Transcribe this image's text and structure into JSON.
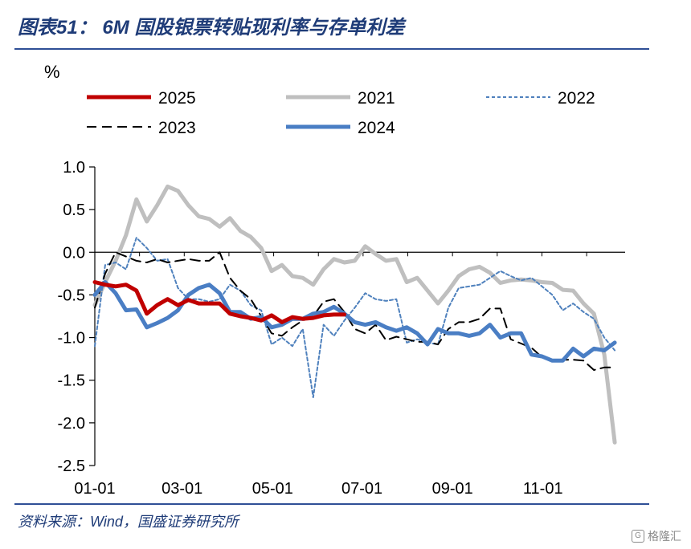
{
  "header": {
    "title": "图表51：  6M 国股银票转贴现利率与存单利差"
  },
  "footer": {
    "source": "资料来源：Wind，国盛证券研究所",
    "watermark": "格隆汇"
  },
  "chart_data": {
    "type": "line",
    "ylabel": "%",
    "ylim": [
      -2.5,
      1.0
    ],
    "yticks": [
      1.0,
      0.5,
      0.0,
      -0.5,
      -1.0,
      -1.5,
      -2.0,
      -2.5
    ],
    "ytick_labels": [
      "1.0",
      "0.5",
      "0.0",
      "-0.5",
      "-1.0",
      "-1.5",
      "-2.0",
      "-2.5"
    ],
    "xticks": [
      "01-01",
      "03-01",
      "05-01",
      "07-01",
      "09-01",
      "11-01"
    ],
    "x_unit": "week of year",
    "x_tick_weeks": [
      0,
      8.4,
      17.1,
      25.7,
      34.4,
      43.1
    ],
    "xlim": [
      0,
      51
    ],
    "legend_position": "top",
    "series": [
      {
        "name": "2025",
        "color": "#c00000",
        "style": "solid-thick",
        "x": [
          0,
          1,
          2,
          3,
          4,
          5,
          6,
          7,
          8,
          9,
          10,
          11,
          12,
          13,
          14,
          15,
          16,
          17,
          18,
          19,
          20,
          21,
          22,
          23,
          24
        ],
        "values": [
          -0.35,
          -0.38,
          -0.4,
          -0.38,
          -0.45,
          -0.72,
          -0.62,
          -0.55,
          -0.62,
          -0.56,
          -0.6,
          -0.6,
          -0.6,
          -0.72,
          -0.75,
          -0.77,
          -0.8,
          -0.74,
          -0.82,
          -0.76,
          -0.78,
          -0.77,
          -0.74,
          -0.73,
          -0.73
        ]
      },
      {
        "name": "2021",
        "color": "#bfbfbf",
        "style": "solid-thick",
        "x": [
          0,
          1,
          2,
          3,
          4,
          5,
          6,
          7,
          8,
          9,
          10,
          11,
          12,
          13,
          14,
          15,
          16,
          17,
          18,
          19,
          20,
          21,
          22,
          23,
          24,
          25,
          26,
          27,
          28,
          29,
          30,
          31,
          32,
          33,
          34,
          35,
          36,
          37,
          38,
          39,
          40,
          41,
          42,
          43,
          44,
          45,
          46,
          47,
          48,
          49,
          50
        ],
        "values": [
          -0.62,
          -0.35,
          -0.1,
          0.2,
          0.62,
          0.36,
          0.55,
          0.77,
          0.72,
          0.55,
          0.42,
          0.39,
          0.3,
          0.4,
          0.25,
          0.18,
          0.05,
          -0.22,
          -0.15,
          -0.28,
          -0.3,
          -0.38,
          -0.2,
          -0.08,
          -0.12,
          -0.1,
          0.07,
          -0.02,
          -0.1,
          -0.08,
          -0.35,
          -0.3,
          -0.45,
          -0.6,
          -0.45,
          -0.28,
          -0.2,
          -0.17,
          -0.24,
          -0.36,
          -0.33,
          -0.32,
          -0.33,
          -0.35,
          -0.36,
          -0.44,
          -0.45,
          -0.6,
          -0.72,
          -1.2,
          -2.23
        ]
      },
      {
        "name": "2022",
        "color": "#4f81bd",
        "style": "dotted",
        "x": [
          0,
          1,
          2,
          3,
          4,
          5,
          6,
          7,
          8,
          9,
          10,
          11,
          12,
          13,
          14,
          15,
          16,
          17,
          18,
          19,
          20,
          21,
          22,
          23,
          24,
          25,
          26,
          27,
          28,
          29,
          30,
          31,
          32,
          33,
          34,
          35,
          36,
          37,
          38,
          39,
          40,
          41,
          42,
          43,
          44,
          45,
          46,
          47,
          48,
          49,
          50
        ],
        "values": [
          -1.1,
          -0.15,
          -0.12,
          -0.2,
          0.17,
          0.05,
          -0.1,
          -0.08,
          -0.42,
          -0.55,
          -0.55,
          -0.58,
          -0.55,
          -0.38,
          -0.45,
          -0.62,
          -0.68,
          -1.08,
          -1.0,
          -1.1,
          -0.9,
          -1.7,
          -0.85,
          -0.98,
          -0.8,
          -0.65,
          -0.48,
          -0.55,
          -0.57,
          -0.55,
          -1.06,
          -1.02,
          -1.06,
          -1.08,
          -0.65,
          -0.42,
          -0.4,
          -0.38,
          -0.3,
          -0.22,
          -0.28,
          -0.33,
          -0.3,
          -0.4,
          -0.5,
          -0.68,
          -0.6,
          -0.7,
          -0.78,
          -1.0,
          -1.15
        ]
      },
      {
        "name": "2023",
        "color": "#000000",
        "style": "dashed",
        "x": [
          0,
          1,
          2,
          3,
          4,
          5,
          6,
          7,
          8,
          9,
          10,
          11,
          12,
          13,
          14,
          15,
          16,
          17,
          18,
          19,
          20,
          21,
          22,
          23,
          24,
          25,
          26,
          27,
          28,
          29,
          30,
          31,
          32,
          33,
          34,
          35,
          36,
          37,
          38,
          39,
          40,
          41,
          42,
          43,
          44,
          45,
          46,
          47,
          48,
          49,
          50
        ],
        "values": [
          -0.65,
          -0.25,
          0.0,
          -0.05,
          -0.1,
          -0.12,
          -0.08,
          -0.12,
          -0.1,
          -0.08,
          -0.1,
          -0.1,
          0.0,
          -0.3,
          -0.45,
          -0.55,
          -0.75,
          -0.95,
          -0.98,
          -0.88,
          -0.8,
          -0.75,
          -0.58,
          -0.55,
          -0.7,
          -0.9,
          -0.95,
          -0.85,
          -1.03,
          -0.99,
          -1.02,
          -1.05,
          -1.05,
          -1.08,
          -0.9,
          -0.82,
          -0.82,
          -0.78,
          -0.66,
          -0.66,
          -1.02,
          -1.07,
          -1.12,
          -1.23,
          -1.28,
          -1.26,
          -1.26,
          -1.27,
          -1.38,
          -1.35,
          -1.35
        ]
      },
      {
        "name": "2024",
        "color": "#4a7ec4",
        "style": "solid-thick",
        "x": [
          0,
          1,
          2,
          3,
          4,
          5,
          6,
          7,
          8,
          9,
          10,
          11,
          12,
          13,
          14,
          15,
          16,
          17,
          18,
          19,
          20,
          21,
          22,
          23,
          24,
          25,
          26,
          27,
          28,
          29,
          30,
          31,
          32,
          33,
          34,
          35,
          36,
          37,
          38,
          39,
          40,
          41,
          42,
          43,
          44,
          45,
          46,
          47,
          48,
          49,
          50
        ],
        "values": [
          -0.5,
          -0.35,
          -0.48,
          -0.68,
          -0.67,
          -0.88,
          -0.83,
          -0.77,
          -0.68,
          -0.5,
          -0.42,
          -0.38,
          -0.48,
          -0.7,
          -0.7,
          -0.78,
          -0.76,
          -0.88,
          -0.85,
          -0.78,
          -0.78,
          -0.72,
          -0.7,
          -0.64,
          -0.72,
          -0.82,
          -0.85,
          -0.82,
          -0.88,
          -0.92,
          -0.88,
          -0.95,
          -1.08,
          -0.9,
          -0.95,
          -0.95,
          -0.98,
          -0.95,
          -0.85,
          -1.0,
          -0.95,
          -0.95,
          -1.2,
          -1.22,
          -1.27,
          -1.27,
          -1.13,
          -1.22,
          -1.13,
          -1.15,
          -1.06
        ]
      }
    ]
  }
}
